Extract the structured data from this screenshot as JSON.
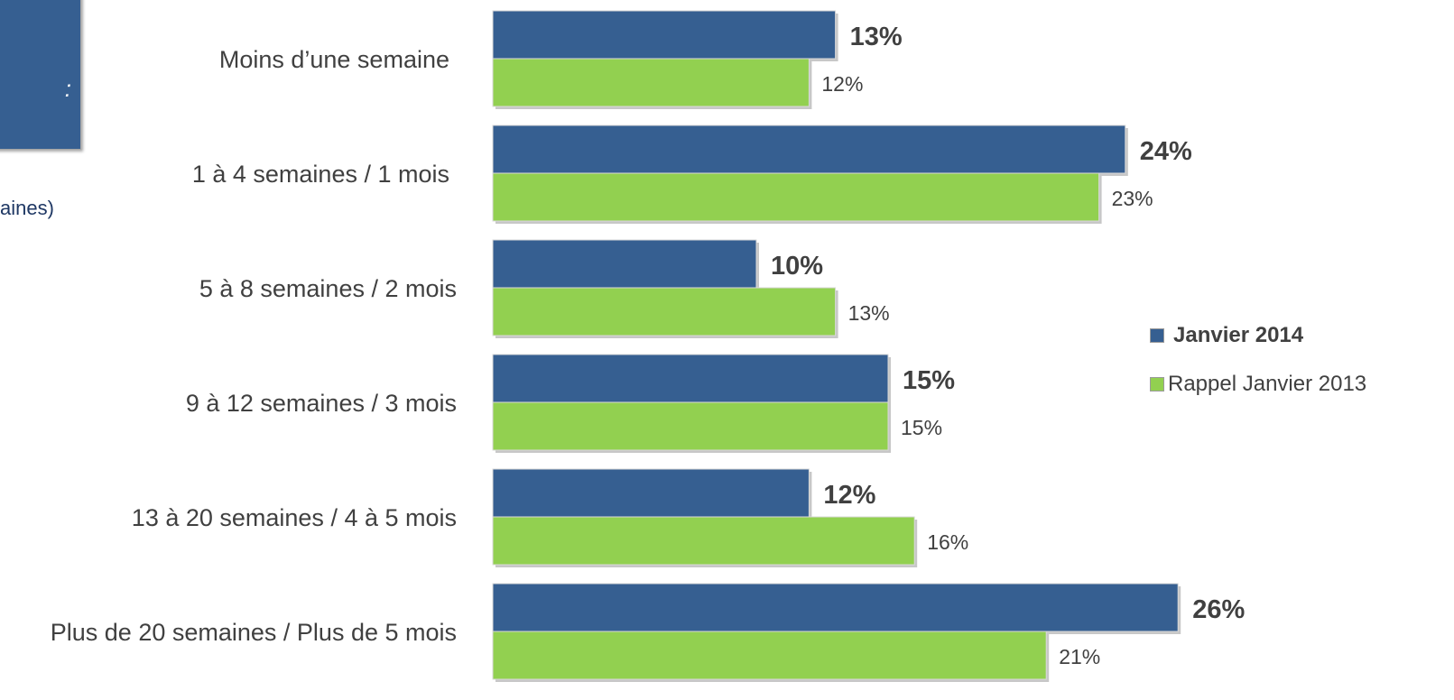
{
  "side_panel": {
    "box_text": ":",
    "note_text": "aines)",
    "box_color": "#365f91"
  },
  "legend": {
    "items": [
      {
        "label": "Janvier 2014",
        "color": "#365f91",
        "bold": true
      },
      {
        "label": "Rappel Janvier 2013",
        "color": "#92d050",
        "bold": false
      }
    ]
  },
  "chart_data": {
    "type": "bar",
    "orientation": "horizontal",
    "categories": [
      "Moins d’une semaine",
      "1 à 4 semaines / 1 mois",
      "5 à 8 semaines / 2 mois",
      "9 à 12 semaines / 3 mois",
      "13 à 20 semaines / 4 à 5 mois",
      "Plus de 20 semaines / Plus de 5 mois"
    ],
    "series": [
      {
        "name": "Janvier 2014",
        "values": [
          13,
          24,
          10,
          15,
          12,
          26
        ],
        "labels": [
          "13%",
          "24%",
          "10%",
          "15%",
          "12%",
          "26%"
        ],
        "color": "#365f91"
      },
      {
        "name": "Rappel Janvier 2013",
        "values": [
          12,
          23,
          13,
          15,
          16,
          21
        ],
        "labels": [
          "12%",
          "23%",
          "13%",
          "15%",
          "16%",
          "21%"
        ],
        "color": "#92d050"
      }
    ],
    "legend_position": "right",
    "grid": false
  }
}
